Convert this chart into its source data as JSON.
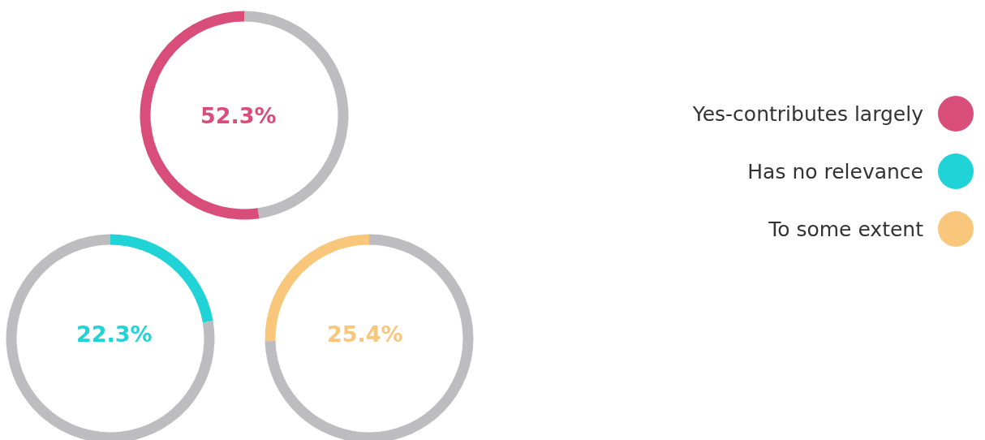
{
  "chart_data": [
    {
      "type": "donut",
      "categories": [
        null,
        "Yes-contributes largely"
      ],
      "values": [
        47.7,
        52.3
      ],
      "colors": [
        "#bdbdc0",
        "#d94d7a"
      ],
      "value_labels": [
        null,
        "52.3%"
      ],
      "legend": "right"
    },
    {
      "type": "donut",
      "categories": [
        "Has no relevance",
        null
      ],
      "values": [
        22.3,
        77.7
      ],
      "colors": [
        "#1fd3d6",
        "#bdbdc0"
      ],
      "value_labels": [
        "22.3%",
        null
      ],
      "legend": "right"
    },
    {
      "type": "donut",
      "categories": [
        null,
        "To some extent"
      ],
      "values": [
        74.6,
        25.4
      ],
      "colors": [
        "#bdbdc0",
        "#f9c77c"
      ],
      "value_labels": [
        null,
        "25.4%"
      ],
      "legend": "right"
    }
  ]
}
